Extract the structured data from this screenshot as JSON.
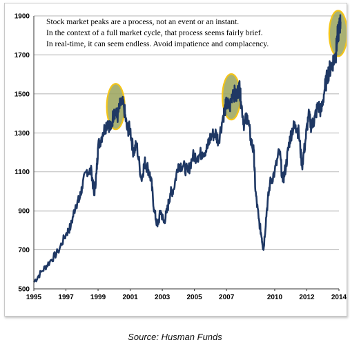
{
  "chart_data": {
    "type": "line",
    "x_ticks": [
      "1995",
      "1997",
      "1999",
      "2001",
      "2003",
      "2005",
      "2007",
      "2010",
      "2012",
      "2014"
    ],
    "y_ticks": [
      "500",
      "700",
      "900",
      "1100",
      "1300",
      "1500",
      "1700",
      "1900"
    ],
    "ylim": [
      500,
      1900
    ],
    "xlim": [
      1995.0,
      2014.0
    ],
    "grid": "horizontal",
    "annotation_lines": [
      "Stock market peaks are a process, not an event or an instant.",
      "In the context of a full market cycle, that process seems fairly brief.",
      "In real-time, it can seem endless. Avoid impatience and complacency."
    ],
    "series": [
      {
        "color": "#1f3864",
        "points": [
          [
            1995.0,
            535
          ],
          [
            1995.5,
            590
          ],
          [
            1996.0,
            640
          ],
          [
            1996.5,
            690
          ],
          [
            1997.0,
            780
          ],
          [
            1997.3,
            820
          ],
          [
            1997.6,
            930
          ],
          [
            1997.85,
            960
          ],
          [
            1998.0,
            1020
          ],
          [
            1998.3,
            1110
          ],
          [
            1998.6,
            1100
          ],
          [
            1998.75,
            980
          ],
          [
            1998.9,
            1090
          ],
          [
            1999.0,
            1230
          ],
          [
            1999.3,
            1300
          ],
          [
            1999.6,
            1360
          ],
          [
            1999.8,
            1320
          ],
          [
            2000.0,
            1420
          ],
          [
            2000.2,
            1380
          ],
          [
            2000.4,
            1450
          ],
          [
            2000.6,
            1440
          ],
          [
            2000.8,
            1320
          ],
          [
            2001.0,
            1320
          ],
          [
            2001.2,
            1200
          ],
          [
            2001.4,
            1240
          ],
          [
            2001.7,
            1060
          ],
          [
            2001.9,
            1150
          ],
          [
            2002.1,
            1120
          ],
          [
            2002.3,
            1060
          ],
          [
            2002.5,
            900
          ],
          [
            2002.7,
            820
          ],
          [
            2002.9,
            900
          ],
          [
            2003.1,
            840
          ],
          [
            2003.3,
            900
          ],
          [
            2003.5,
            990
          ],
          [
            2003.7,
            1010
          ],
          [
            2004.0,
            1140
          ],
          [
            2004.3,
            1130
          ],
          [
            2004.6,
            1100
          ],
          [
            2004.9,
            1180
          ],
          [
            2005.2,
            1180
          ],
          [
            2005.5,
            1200
          ],
          [
            2005.8,
            1220
          ],
          [
            2006.0,
            1280
          ],
          [
            2006.3,
            1300
          ],
          [
            2006.5,
            1260
          ],
          [
            2006.8,
            1390
          ],
          [
            2007.0,
            1450
          ],
          [
            2007.2,
            1430
          ],
          [
            2007.4,
            1520
          ],
          [
            2007.6,
            1480
          ],
          [
            2007.8,
            1540
          ],
          [
            2007.9,
            1460
          ],
          [
            2008.1,
            1340
          ],
          [
            2008.3,
            1390
          ],
          [
            2008.5,
            1270
          ],
          [
            2008.7,
            1200
          ],
          [
            2008.8,
            1000
          ],
          [
            2009.0,
            860
          ],
          [
            2009.2,
            760
          ],
          [
            2009.3,
            700
          ],
          [
            2009.5,
            900
          ],
          [
            2009.7,
            1040
          ],
          [
            2010.0,
            1100
          ],
          [
            2010.3,
            1210
          ],
          [
            2010.5,
            1050
          ],
          [
            2010.7,
            1130
          ],
          [
            2010.9,
            1250
          ],
          [
            2011.1,
            1320
          ],
          [
            2011.3,
            1340
          ],
          [
            2011.5,
            1300
          ],
          [
            2011.7,
            1130
          ],
          [
            2011.9,
            1250
          ],
          [
            2012.1,
            1390
          ],
          [
            2012.3,
            1330
          ],
          [
            2012.5,
            1380
          ],
          [
            2012.7,
            1440
          ],
          [
            2012.9,
            1410
          ],
          [
            2013.1,
            1520
          ],
          [
            2013.3,
            1600
          ],
          [
            2013.5,
            1640
          ],
          [
            2013.7,
            1680
          ],
          [
            2013.8,
            1700
          ],
          [
            2013.9,
            1790
          ],
          [
            2014.0,
            1830
          ],
          [
            2014.1,
            1870
          ]
        ]
      }
    ],
    "highlights": [
      {
        "x": 2000.1,
        "y": 1435,
        "color": "#f5c518"
      },
      {
        "x": 2007.3,
        "y": 1485,
        "color": "#f5c518"
      },
      {
        "x": 2013.95,
        "y": 1810,
        "color": "#f5c518"
      }
    ]
  },
  "footer": {
    "source": "Source: Husman Funds"
  }
}
